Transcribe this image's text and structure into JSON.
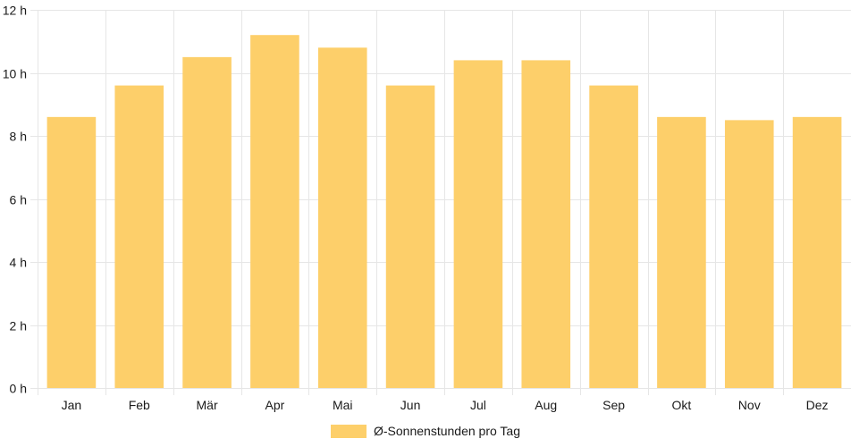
{
  "colors": {
    "bar": "#fdcf6a",
    "grid": "#e6e6e6",
    "axis_text": "#1a1a1a"
  },
  "chart_data": {
    "type": "bar",
    "categories": [
      "Jan",
      "Feb",
      "Mär",
      "Apr",
      "Mai",
      "Jun",
      "Jul",
      "Aug",
      "Sep",
      "Okt",
      "Nov",
      "Dez"
    ],
    "series": [
      {
        "name": "Ø-Sonnenstunden pro Tag",
        "values": [
          8.6,
          9.6,
          10.5,
          11.2,
          10.8,
          9.6,
          10.4,
          10.4,
          9.6,
          8.6,
          8.5,
          8.6
        ]
      }
    ],
    "ylim": [
      0,
      12
    ],
    "yticks": [
      0,
      2,
      4,
      6,
      8,
      10,
      12
    ],
    "ytick_labels": [
      "0 h",
      "2 h",
      "4 h",
      "6 h",
      "8 h",
      "10 h",
      "12 h"
    ],
    "grid": true,
    "legend_position": "bottom-center"
  }
}
